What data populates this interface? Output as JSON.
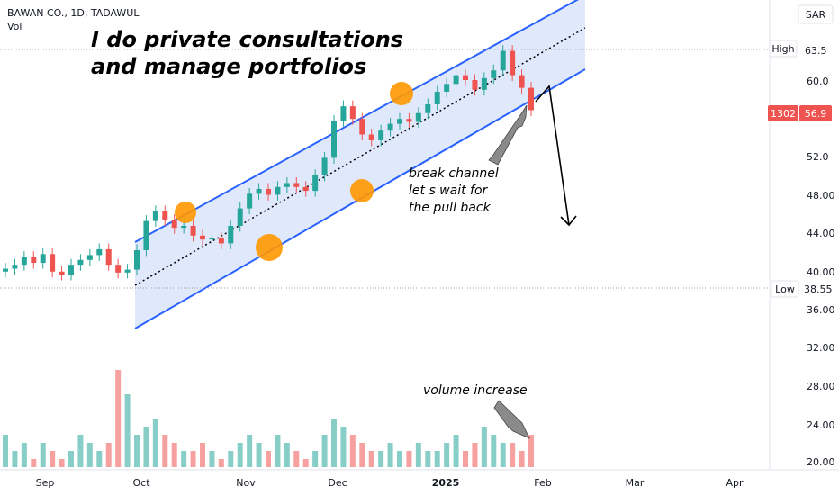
{
  "header": {
    "symbol_line": "BAWAN CO., 1D, TADAWUL",
    "vol_label": "Vol"
  },
  "currency": "SAR",
  "annotations": {
    "promo_line1": "I do private consultations",
    "promo_line2": "and manage portfolios",
    "break_line1": "break channel",
    "break_line2": "let s wait for",
    "break_line3": "the pull back",
    "volume_note": "volume increase"
  },
  "markers": {
    "high_label": "High",
    "high_value": "63.5",
    "low_label": "Low",
    "low_value": "38.55",
    "last_volume": "1302",
    "last_price": "56.9"
  },
  "colors": {
    "up": "#26a69a",
    "down": "#ef5350",
    "channel_line": "#2962ff",
    "channel_fill": "#dbe4fb",
    "marker": "#ff9800"
  },
  "chart_data": {
    "type": "candlestick",
    "title": "BAWAN CO., 1D, TADAWUL",
    "y_ticks": [
      "63.5",
      "60.0",
      "56.0",
      "52.0",
      "48.00",
      "44.00",
      "40.00",
      "36.00",
      "32.00",
      "28.00",
      "24.00",
      "20.00"
    ],
    "x_ticks": [
      "Sep",
      "Oct",
      "Nov",
      "Dec",
      "2025",
      "Feb",
      "Mar",
      "Apr"
    ],
    "ylim": [
      20.0,
      65.0
    ],
    "high": 63.5,
    "low": 38.55,
    "last_close": 56.9,
    "trend_channel": {
      "upper": [
        [
          "Oct",
          43.5
        ],
        [
          "Feb",
          67.2
        ]
      ],
      "lower": [
        [
          "Oct",
          34.5
        ],
        [
          "Feb",
          58.5
        ]
      ]
    },
    "series": [
      {
        "name": "Price (approx. daily closes)",
        "x": [
          "Aug 26",
          "Aug 28",
          "Sep 1",
          "Sep 3",
          "Sep 5",
          "Sep 9",
          "Sep 11",
          "Sep 15",
          "Sep 17",
          "Sep 19",
          "Sep 23",
          "Sep 25",
          "Sep 29",
          "Oct 1",
          "Oct 3",
          "Oct 7",
          "Oct 9",
          "Oct 11",
          "Oct 15",
          "Oct 17",
          "Oct 21",
          "Oct 23",
          "Oct 27",
          "Oct 29",
          "Oct 31",
          "Nov 4",
          "Nov 6",
          "Nov 10",
          "Nov 12",
          "Nov 14",
          "Nov 18",
          "Nov 20",
          "Nov 24",
          "Nov 26",
          "Nov 28",
          "Dec 2",
          "Dec 4",
          "Dec 8",
          "Dec 10",
          "Dec 12",
          "Dec 16",
          "Dec 18",
          "Dec 22",
          "Dec 24",
          "Dec 26",
          "Dec 30",
          "Jan 1",
          "Jan 5",
          "Jan 7",
          "Jan 9",
          "Jan 13",
          "Jan 15",
          "Jan 19",
          "Jan 21",
          "Jan 23",
          "Jan 27",
          "Jan 29"
        ],
        "values": [
          40.6,
          41.0,
          41.8,
          41.2,
          42.1,
          40.3,
          40.0,
          41.0,
          41.5,
          42.0,
          42.6,
          41.0,
          40.2,
          40.5,
          42.5,
          45.5,
          46.5,
          45.6,
          44.8,
          45.0,
          44.0,
          43.6,
          43.8,
          43.2,
          45.0,
          46.8,
          48.3,
          48.8,
          48.2,
          49.0,
          49.4,
          49.0,
          48.6,
          50.2,
          52.0,
          55.8,
          57.3,
          56.0,
          54.4,
          53.8,
          54.8,
          55.5,
          56.0,
          55.7,
          56.6,
          57.5,
          58.8,
          59.6,
          60.5,
          60.0,
          59.0,
          60.2,
          61.0,
          63.0,
          60.5,
          59.2,
          56.9
        ]
      },
      {
        "name": "Vol",
        "values": [
          24,
          22,
          23,
          21,
          23,
          22,
          21,
          22,
          24,
          23,
          22,
          23,
          32,
          29,
          24,
          25,
          26,
          24,
          23,
          22,
          22,
          23,
          22,
          21,
          22,
          23,
          24,
          23,
          22,
          24,
          23,
          22,
          21,
          22,
          24,
          26,
          25,
          24,
          23,
          22,
          22,
          23,
          22,
          22,
          23,
          22,
          22,
          23,
          24,
          22,
          23,
          25,
          24,
          23,
          23,
          22,
          24
        ]
      }
    ]
  }
}
